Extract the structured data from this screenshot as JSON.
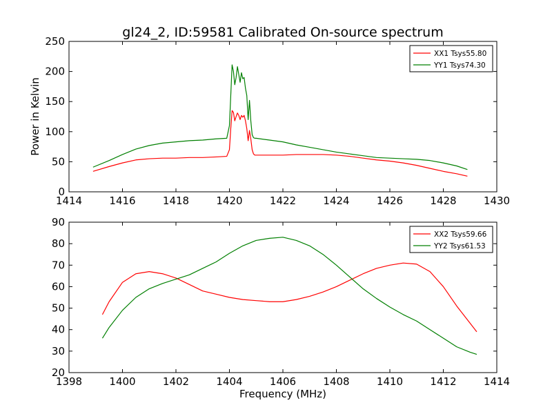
{
  "title": "gl24_2, ID:59581 Calibrated On-source spectrum",
  "chart_data": [
    {
      "type": "line",
      "title": "",
      "xlabel": "",
      "ylabel": "Power in Kelvin",
      "xlim": [
        1414,
        1430
      ],
      "ylim": [
        0,
        250
      ],
      "xticks": [
        "1414",
        "1416",
        "1418",
        "1420",
        "1422",
        "1424",
        "1426",
        "1428",
        "1430"
      ],
      "yticks": [
        "0",
        "50",
        "100",
        "150",
        "200",
        "250"
      ],
      "grid": false,
      "legend_position": "top-right",
      "series": [
        {
          "name": "XX1 Tsys55.80",
          "color": "#ff0000",
          "x": [
            1414.9,
            1415.5,
            1416.0,
            1416.5,
            1417.0,
            1417.5,
            1418.0,
            1418.5,
            1419.0,
            1419.5,
            1419.9,
            1420.0,
            1420.05,
            1420.1,
            1420.15,
            1420.2,
            1420.25,
            1420.3,
            1420.35,
            1420.4,
            1420.45,
            1420.5,
            1420.55,
            1420.6,
            1420.65,
            1420.7,
            1420.75,
            1420.8,
            1420.85,
            1420.9,
            1420.95,
            1421.0,
            1421.5,
            1422.0,
            1422.5,
            1423.0,
            1423.5,
            1424.0,
            1424.5,
            1425.0,
            1425.5,
            1426.0,
            1426.5,
            1427.0,
            1427.5,
            1428.0,
            1428.5,
            1428.9
          ],
          "y": [
            34,
            42,
            48,
            53,
            55,
            56,
            56,
            57,
            57,
            58,
            59,
            70,
            105,
            135,
            132,
            118,
            125,
            131,
            127,
            120,
            127,
            124,
            127,
            118,
            105,
            85,
            102,
            88,
            70,
            63,
            61,
            61,
            61,
            61,
            62,
            62,
            62,
            61,
            59,
            56,
            53,
            51,
            48,
            44,
            39,
            34,
            30,
            26
          ]
        },
        {
          "name": "YY1 Tsys74.30",
          "color": "#007f00",
          "x": [
            1414.9,
            1415.5,
            1416.0,
            1416.5,
            1417.0,
            1417.5,
            1418.0,
            1418.5,
            1419.0,
            1419.5,
            1419.9,
            1420.0,
            1420.05,
            1420.1,
            1420.15,
            1420.2,
            1420.25,
            1420.3,
            1420.35,
            1420.4,
            1420.45,
            1420.5,
            1420.55,
            1420.6,
            1420.65,
            1420.7,
            1420.75,
            1420.8,
            1420.85,
            1420.9,
            1420.95,
            1421.0,
            1421.5,
            1422.0,
            1422.5,
            1423.0,
            1423.5,
            1424.0,
            1424.5,
            1425.0,
            1425.5,
            1426.0,
            1426.5,
            1427.0,
            1427.5,
            1428.0,
            1428.5,
            1428.9
          ],
          "y": [
            41,
            52,
            62,
            71,
            77,
            81,
            83,
            85,
            86,
            88,
            89,
            110,
            160,
            211,
            200,
            178,
            190,
            208,
            195,
            182,
            198,
            188,
            190,
            172,
            160,
            120,
            152,
            118,
            95,
            90,
            89,
            89,
            86,
            83,
            78,
            74,
            70,
            66,
            63,
            60,
            57,
            56,
            55,
            54,
            52,
            48,
            43,
            37
          ]
        }
      ]
    },
    {
      "type": "line",
      "title": "",
      "xlabel": "Frequency (MHz)",
      "ylabel": "",
      "xlim": [
        1398,
        1414
      ],
      "ylim": [
        20,
        90
      ],
      "xticks": [
        "1398",
        "1400",
        "1402",
        "1404",
        "1406",
        "1408",
        "1410",
        "1412",
        "1414"
      ],
      "yticks": [
        "20",
        "30",
        "40",
        "50",
        "60",
        "70",
        "80",
        "90"
      ],
      "grid": false,
      "legend_position": "top-right",
      "series": [
        {
          "name": "XX2 Tsys59.66",
          "color": "#ff0000",
          "x": [
            1399.25,
            1399.5,
            1400.0,
            1400.5,
            1401.0,
            1401.5,
            1402.0,
            1402.5,
            1403.0,
            1403.5,
            1404.0,
            1404.5,
            1405.0,
            1405.5,
            1406.0,
            1406.5,
            1407.0,
            1407.5,
            1408.0,
            1408.5,
            1409.0,
            1409.5,
            1410.0,
            1410.5,
            1411.0,
            1411.5,
            1412.0,
            1412.5,
            1413.0,
            1413.25
          ],
          "y": [
            47,
            53,
            62,
            66,
            67,
            66,
            64,
            61,
            58,
            56.5,
            55,
            54,
            53.5,
            53,
            53,
            54,
            55.5,
            57.5,
            60,
            63,
            66,
            68.5,
            70,
            71,
            70.5,
            67,
            60,
            51,
            43,
            39
          ]
        },
        {
          "name": "YY2 Tsys61.53",
          "color": "#007f00",
          "x": [
            1399.25,
            1399.5,
            1400.0,
            1400.5,
            1401.0,
            1401.5,
            1402.0,
            1402.5,
            1403.0,
            1403.5,
            1404.0,
            1404.5,
            1405.0,
            1405.5,
            1406.0,
            1406.5,
            1407.0,
            1407.5,
            1408.0,
            1408.5,
            1409.0,
            1409.5,
            1410.0,
            1410.5,
            1411.0,
            1411.5,
            1412.0,
            1412.5,
            1413.0,
            1413.25
          ],
          "y": [
            36,
            41,
            49,
            55,
            59,
            61.5,
            63.5,
            65.5,
            68.5,
            71.5,
            75.5,
            79,
            81.5,
            82.5,
            83,
            81.5,
            79,
            75,
            70,
            64.5,
            59,
            54.5,
            50.5,
            47,
            44,
            40,
            36,
            32,
            29.5,
            28.5
          ]
        }
      ]
    }
  ]
}
